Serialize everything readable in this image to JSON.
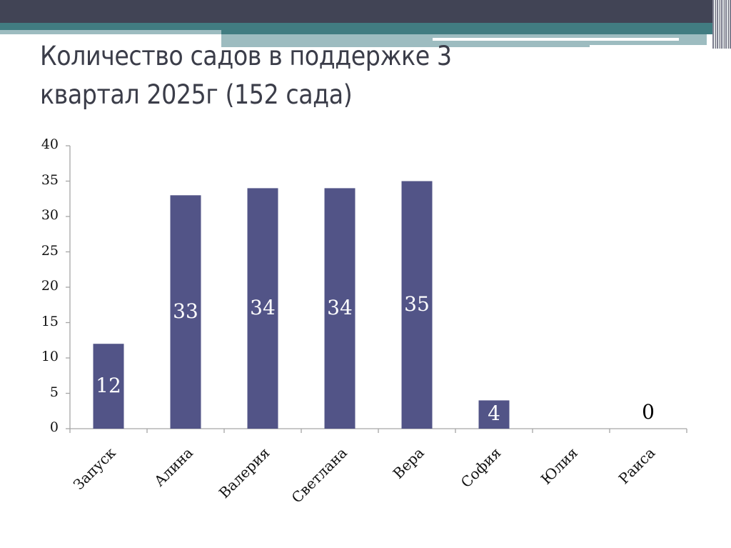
{
  "slide": {
    "title_line1": "Количество садов в поддержке 3",
    "title_line2": "квартал 2025г (152 сада)",
    "colors": {
      "header_dark": "#414455",
      "header_teal": "#417c81",
      "header_light": "#9dbcc0",
      "title_text": "#3b3d49",
      "bar_fill": "#525487",
      "axis": "#a6a6a6"
    }
  },
  "chart_data": {
    "type": "bar",
    "title": "Количество садов в поддержке 3 квартал 2025г (152 сада)",
    "categories": [
      "Запуск",
      "Алина",
      "Валерия",
      "Светлана",
      "Вера",
      "София",
      "Юлия",
      "Раиса"
    ],
    "values": [
      12,
      33,
      34,
      34,
      35,
      4,
      0,
      0
    ],
    "data_labels": [
      "12",
      "33",
      "34",
      "34",
      "35",
      "4",
      "",
      "0"
    ],
    "xlabel": "",
    "ylabel": "",
    "ylim": [
      0,
      40
    ],
    "yticks": [
      "0",
      "5",
      "10",
      "15",
      "20",
      "25",
      "30",
      "35",
      "40"
    ],
    "grid": false,
    "legend": null,
    "x_label_rotation": -45
  }
}
